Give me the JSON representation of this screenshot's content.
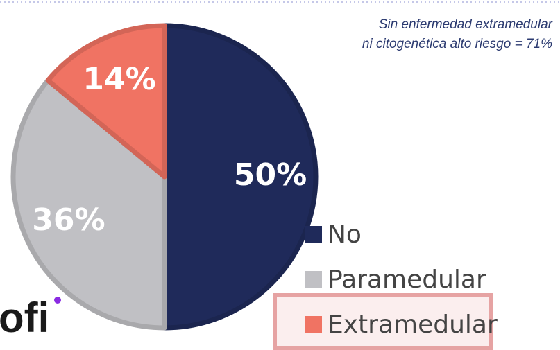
{
  "chart_data": {
    "type": "pie",
    "categories": [
      "No",
      "Paramedular",
      "Extramedular"
    ],
    "values": [
      50,
      36,
      14
    ],
    "value_labels": [
      "50%",
      "36%",
      "14%"
    ],
    "colors": [
      "#1f2a5a",
      "#c0c0c4",
      "#f07363"
    ],
    "annotation": [
      "Sin enfermedad extramedular",
      "ni citogenética alto riesgo = 71%"
    ],
    "logo": "ofi"
  }
}
